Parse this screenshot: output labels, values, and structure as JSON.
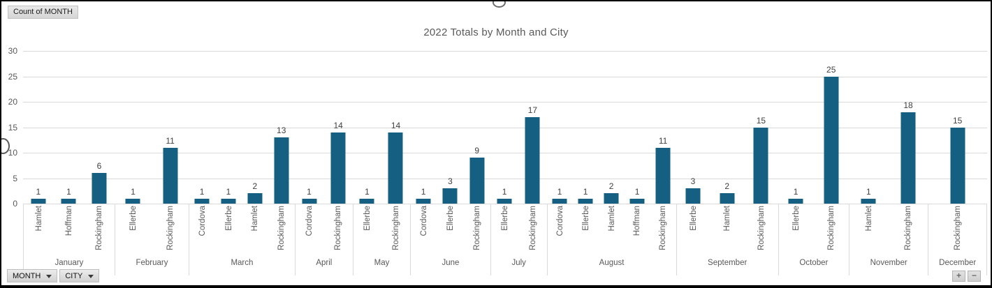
{
  "pivot_buttons": {
    "value_field": "Count of MONTH",
    "axis_fields": [
      "MONTH",
      "CITY"
    ],
    "expand": "+",
    "collapse": "−"
  },
  "chart_data": {
    "type": "bar",
    "title": "2022 Totals by Month and City",
    "xlabel": "",
    "ylabel": "",
    "ylim": [
      0,
      30
    ],
    "yticks": [
      0,
      5,
      10,
      15,
      20,
      25,
      30
    ],
    "grid": true,
    "legend_position": "none",
    "axis_hierarchy": [
      "MONTH",
      "CITY"
    ],
    "groups": [
      {
        "month": "January",
        "bars": [
          {
            "city": "Hamlet",
            "value": 1
          },
          {
            "city": "Hoffman",
            "value": 1
          },
          {
            "city": "Rockingham",
            "value": 6
          }
        ]
      },
      {
        "month": "February",
        "bars": [
          {
            "city": "Ellerbe",
            "value": 1
          },
          {
            "city": "Rockingham",
            "value": 11
          }
        ]
      },
      {
        "month": "March",
        "bars": [
          {
            "city": "Cordova",
            "value": 1
          },
          {
            "city": "Ellerbe",
            "value": 1
          },
          {
            "city": "Hamlet",
            "value": 2
          },
          {
            "city": "Rockingham",
            "value": 13
          }
        ]
      },
      {
        "month": "April",
        "bars": [
          {
            "city": "Cordova",
            "value": 1
          },
          {
            "city": "Rockingham",
            "value": 14
          }
        ]
      },
      {
        "month": "May",
        "bars": [
          {
            "city": "Ellerbe",
            "value": 1
          },
          {
            "city": "Rockingham",
            "value": 14
          }
        ]
      },
      {
        "month": "June",
        "bars": [
          {
            "city": "Cordova",
            "value": 1
          },
          {
            "city": "Ellerbe",
            "value": 3
          },
          {
            "city": "Rockingham",
            "value": 9
          }
        ]
      },
      {
        "month": "July",
        "bars": [
          {
            "city": "Ellerbe",
            "value": 1
          },
          {
            "city": "Rockingham",
            "value": 17
          }
        ]
      },
      {
        "month": "August",
        "bars": [
          {
            "city": "Cordova",
            "value": 1
          },
          {
            "city": "Ellerbe",
            "value": 1
          },
          {
            "city": "Hamlet",
            "value": 2
          },
          {
            "city": "Hoffman",
            "value": 1
          },
          {
            "city": "Rockingham",
            "value": 11
          }
        ]
      },
      {
        "month": "September",
        "bars": [
          {
            "city": "Ellerbe",
            "value": 3
          },
          {
            "city": "Hamlet",
            "value": 2
          },
          {
            "city": "Rockingham",
            "value": 15
          }
        ]
      },
      {
        "month": "October",
        "bars": [
          {
            "city": "Ellerbe",
            "value": 1
          },
          {
            "city": "Rockingham",
            "value": 25
          }
        ]
      },
      {
        "month": "November",
        "bars": [
          {
            "city": "Hamlet",
            "value": 1
          },
          {
            "city": "Rockingham",
            "value": 18
          }
        ]
      },
      {
        "month": "December",
        "bars": [
          {
            "city": "Rockingham",
            "value": 15
          }
        ]
      }
    ]
  },
  "colors": {
    "bar": "#156082",
    "gridline": "#D9D9D9",
    "axis_text": "#595959",
    "value_label": "#404040",
    "title_text": "#595959"
  }
}
